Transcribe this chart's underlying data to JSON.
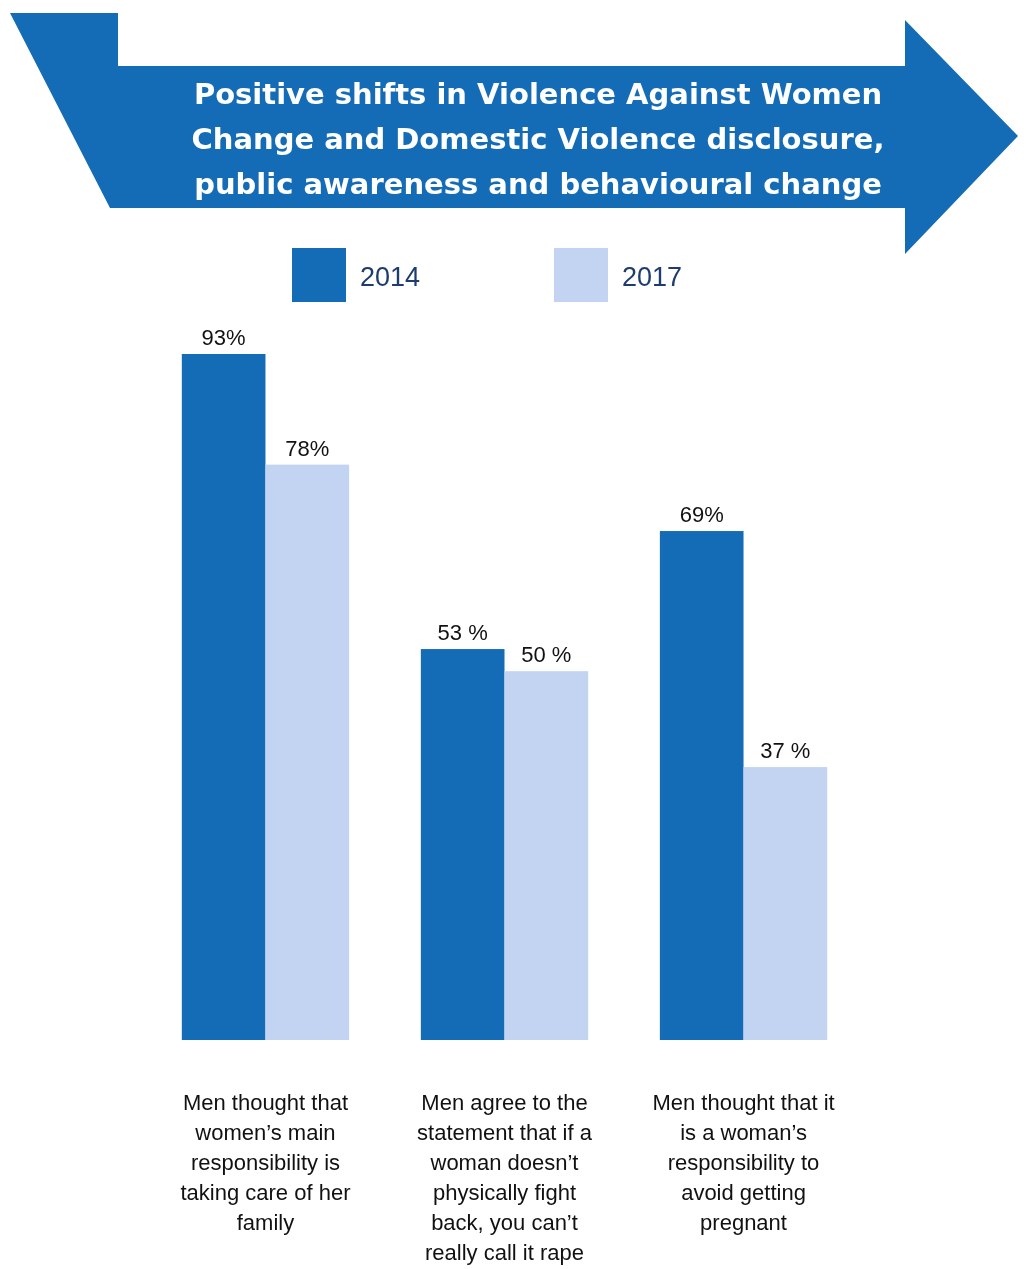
{
  "chart_data": {
    "type": "bar",
    "title": "Positive shifts in Violence Against Women Change and Domestic Violence disclosure, public awareness and behavioural change",
    "categories": [
      "Men thought that women’s main responsibility is taking care of her family",
      "Men agree to the statement that if a woman doesn’t physically fight back, you can’t really call it rape",
      "Men thought that it is a woman’s responsibility to avoid getting pregnant"
    ],
    "series": [
      {
        "name": "2014",
        "color": "#156cb6",
        "values": [
          93,
          53,
          69
        ],
        "value_labels": [
          "93%",
          "53 %",
          "69%"
        ]
      },
      {
        "name": "2017",
        "color": "#c2d4f2",
        "values": [
          78,
          50,
          37
        ],
        "value_labels": [
          "78%",
          "50 %",
          "37 %"
        ]
      }
    ],
    "legend": "top"
  }
}
